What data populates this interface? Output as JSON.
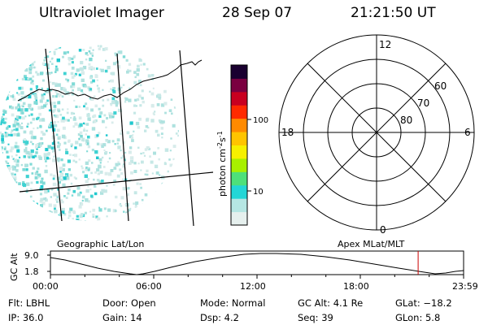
{
  "header": {
    "title": "Ultraviolet Imager",
    "date": "28 Sep 07",
    "time": "21:21:50 UT"
  },
  "colorbar": {
    "label_main": "photon cm",
    "label_exp1": "-2",
    "label_mid": "s",
    "label_exp2": "-1",
    "ticks": [
      "100",
      "10"
    ],
    "colors": [
      "#e6f0ee",
      "#b5e6e3",
      "#23d6d6",
      "#4ee07a",
      "#a8f000",
      "#f6f000",
      "#ffc400",
      "#ff8a00",
      "#ff2a00",
      "#c80020",
      "#7a0040",
      "#1a0030"
    ]
  },
  "geo_map": {
    "label": "Geographic Lat/Lon"
  },
  "polar": {
    "label": "Apex MLat/MLT",
    "mlt_labels": [
      "12",
      "18",
      "6",
      "0"
    ],
    "lat_labels": [
      "60",
      "70",
      "80"
    ]
  },
  "timeline": {
    "y_label": "GC Alt",
    "y_ticks": [
      "9.0",
      "1.8"
    ],
    "x_ticks": [
      "00:00",
      "06:00",
      "12:00",
      "18:00",
      "23:59"
    ],
    "marker_hour": 21.36,
    "marker_color": "#cc0000"
  },
  "info": {
    "row1": {
      "flt": "Flt: LBHL",
      "door": "Door: Open",
      "mode": "Mode: Normal",
      "gc_alt": "GC Alt: 4.1 Re",
      "glat": "GLat: −18.2"
    },
    "row2": {
      "ip": "IP: 36.0",
      "gain": "Gain: 14",
      "dsp": "Dsp:    4.2",
      "seq": "Seq: 39",
      "glon": "GLon:    5.8"
    }
  }
}
